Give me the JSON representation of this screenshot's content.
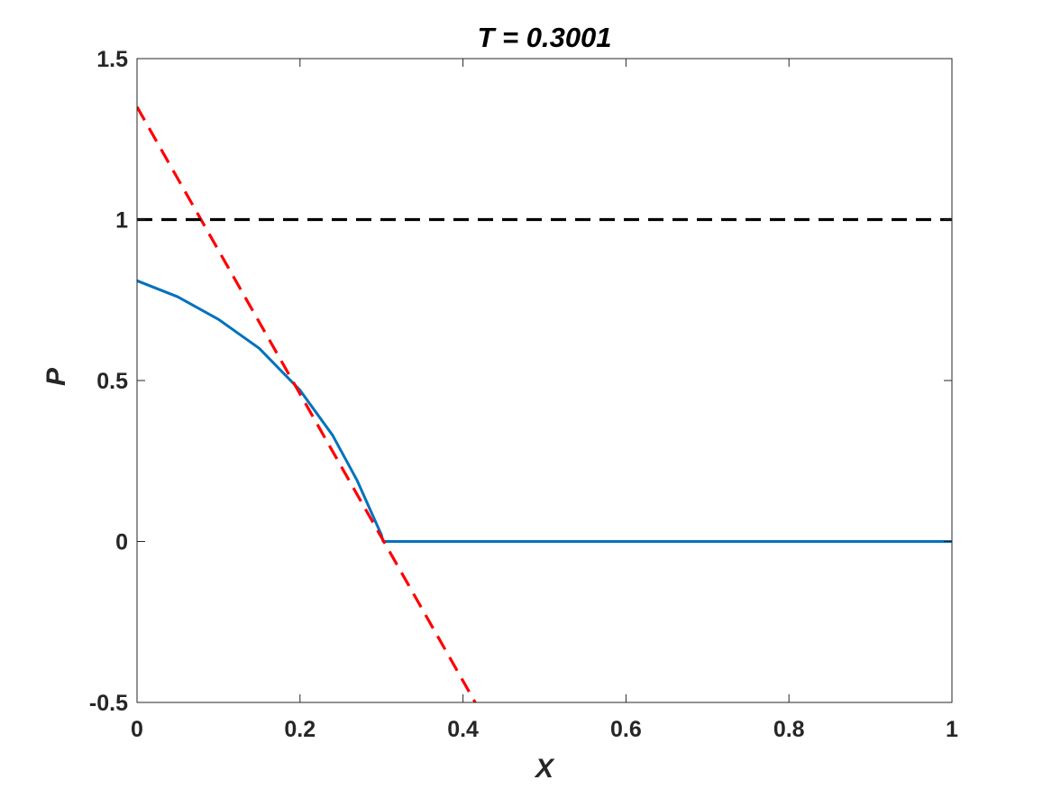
{
  "chart_data": {
    "type": "line",
    "title": "T = 0.3001",
    "xlabel": "X",
    "ylabel": "P",
    "xlim": [
      0,
      1
    ],
    "ylim": [
      -0.5,
      1.5
    ],
    "x_ticks": [
      0,
      0.2,
      0.4,
      0.6,
      0.8,
      1
    ],
    "x_tick_labels": [
      "0",
      "0.2",
      "0.4",
      "0.6",
      "0.8",
      "1"
    ],
    "y_ticks": [
      -0.5,
      0,
      0.5,
      1,
      1.5
    ],
    "y_tick_labels": [
      "-0.5",
      "0",
      "0.5",
      "1",
      "1.5"
    ],
    "grid": false,
    "series": [
      {
        "style": "solid",
        "color": "#0072BD",
        "x": [
          0,
          0.05,
          0.1,
          0.15,
          0.2,
          0.24,
          0.27,
          0.3,
          0.302,
          0.4,
          0.6,
          0.8,
          1.0
        ],
        "y": [
          0.81,
          0.76,
          0.69,
          0.6,
          0.47,
          0.33,
          0.19,
          0.02,
          0.0,
          0.0,
          0.0,
          0.0,
          0.0
        ]
      },
      {
        "style": "dashed",
        "color": "#FF0000",
        "x": [
          0,
          0.415
        ],
        "y": [
          1.35,
          -0.5
        ]
      },
      {
        "style": "dashed",
        "color": "#000000",
        "x": [
          0,
          1
        ],
        "y": [
          1,
          1
        ]
      }
    ]
  }
}
